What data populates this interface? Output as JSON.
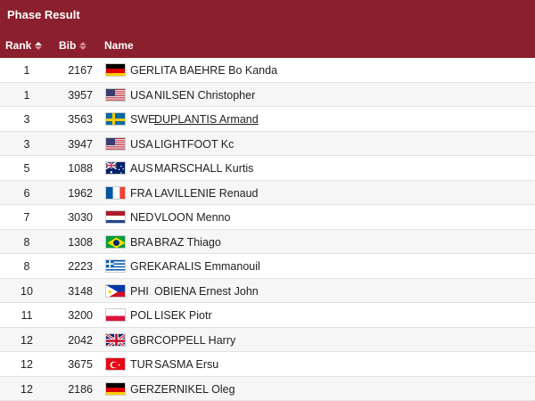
{
  "title": "Phase Result",
  "headers": {
    "rank": "Rank",
    "bib": "Bib",
    "name": "Name"
  },
  "colors": {
    "header_bg": "#8a1f2d",
    "header_text": "#ffffff"
  },
  "rows": [
    {
      "rank": "1",
      "bib": "2167",
      "noc": "GER",
      "name": "LITA BAEHRE Bo Kanda",
      "flag": "germany-flag-icon"
    },
    {
      "rank": "1",
      "bib": "3957",
      "noc": "USA",
      "name": "NILSEN Christopher",
      "flag": "usa-flag-icon"
    },
    {
      "rank": "3",
      "bib": "3563",
      "noc": "SWE",
      "name": "DUPLANTIS Armand",
      "flag": "sweden-flag-icon"
    },
    {
      "rank": "3",
      "bib": "3947",
      "noc": "USA",
      "name": "LIGHTFOOT Kc",
      "flag": "usa-flag-icon"
    },
    {
      "rank": "5",
      "bib": "1088",
      "noc": "AUS",
      "name": "MARSCHALL Kurtis",
      "flag": "australia-flag-icon"
    },
    {
      "rank": "6",
      "bib": "1962",
      "noc": "FRA",
      "name": "LAVILLENIE Renaud",
      "flag": "france-flag-icon"
    },
    {
      "rank": "7",
      "bib": "3030",
      "noc": "NED",
      "name": "VLOON Menno",
      "flag": "netherlands-flag-icon"
    },
    {
      "rank": "8",
      "bib": "1308",
      "noc": "BRA",
      "name": "BRAZ Thiago",
      "flag": "brazil-flag-icon"
    },
    {
      "rank": "8",
      "bib": "2223",
      "noc": "GRE",
      "name": "KARALIS Emmanouil",
      "flag": "greece-flag-icon"
    },
    {
      "rank": "10",
      "bib": "3148",
      "noc": "PHI",
      "name": "OBIENA Ernest John",
      "flag": "philippines-flag-icon"
    },
    {
      "rank": "11",
      "bib": "3200",
      "noc": "POL",
      "name": "LISEK Piotr",
      "flag": "poland-flag-icon"
    },
    {
      "rank": "12",
      "bib": "2042",
      "noc": "GBR",
      "name": "COPPELL Harry",
      "flag": "uk-flag-icon"
    },
    {
      "rank": "12",
      "bib": "3675",
      "noc": "TUR",
      "name": "SASMA Ersu",
      "flag": "turkey-flag-icon"
    },
    {
      "rank": "12",
      "bib": "2186",
      "noc": "GER",
      "name": "ZERNIKEL Oleg",
      "flag": "germany-flag-icon"
    }
  ]
}
